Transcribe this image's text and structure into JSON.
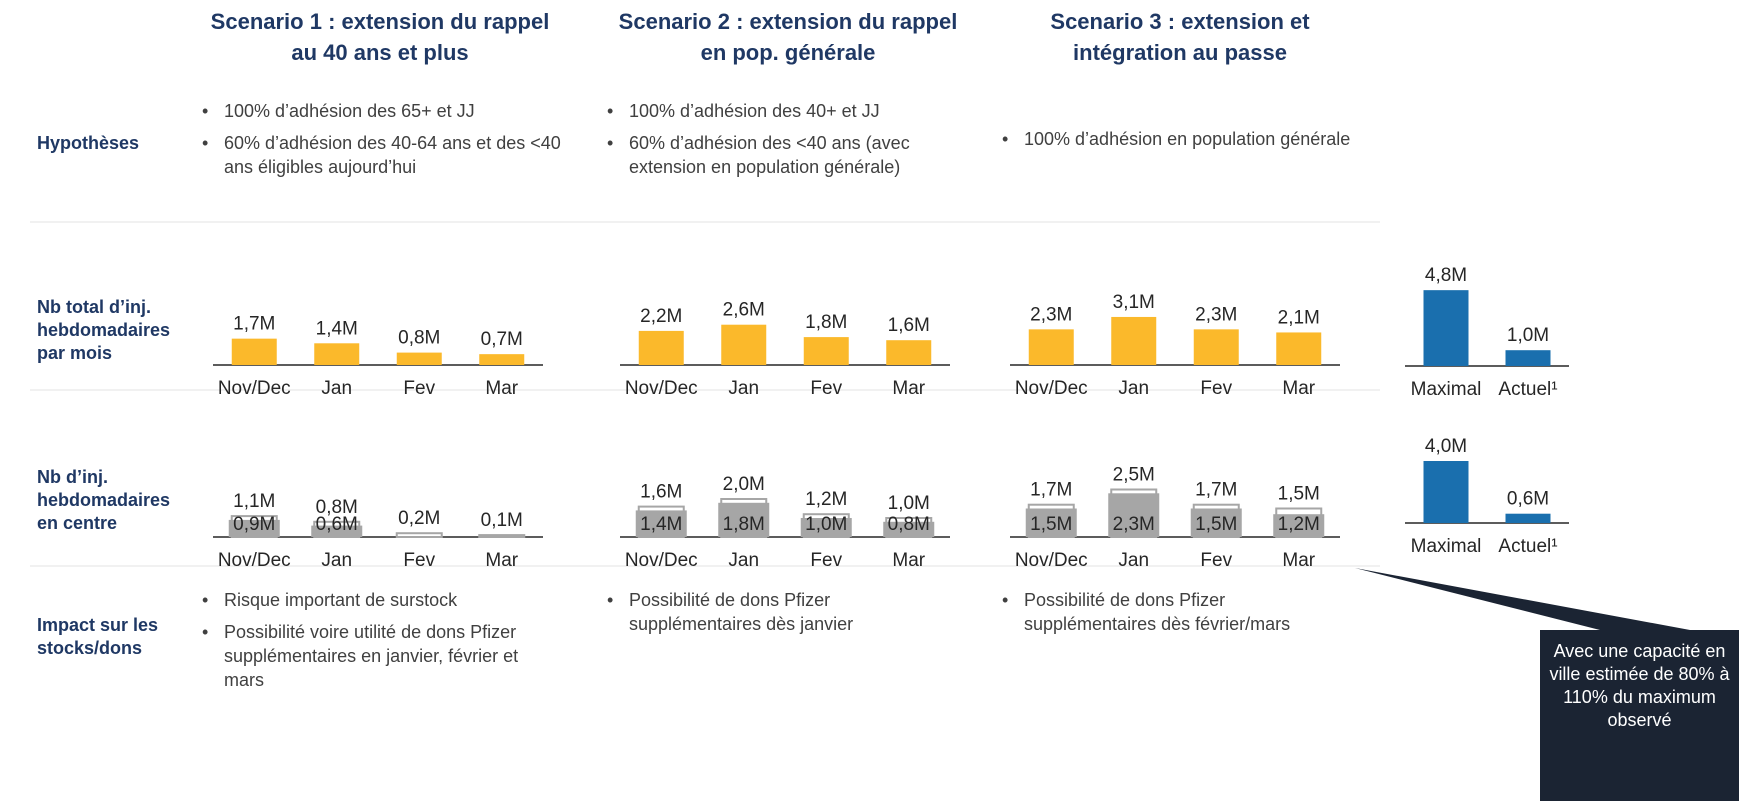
{
  "row_labels": [
    "Hypothèses",
    "Nb total d’inj. hebdomadaires par mois",
    "Nb d’inj. hebdomadaires en centre",
    "Impact sur les stocks/dons"
  ],
  "scenarios": [
    {
      "title": "Scenario 1 : extension du rappel au 40 ans et plus",
      "hypotheses": [
        "100% d’adhésion des 65+ et JJ",
        "60% d’adhésion des 40-64 ans et des <40 ans éligibles aujourd’hui"
      ],
      "impact": [
        "Risque important de surstock",
        "Possibilité voire utilité de dons Pfizer supplémentaires en janvier, février et mars"
      ],
      "total_chart": {
        "type": "bar",
        "categories": [
          "Nov/Dec",
          "Jan",
          "Fev",
          "Mar"
        ],
        "values": [
          1.7,
          1.4,
          0.8,
          0.7
        ],
        "value_labels": [
          "1,7M",
          "1,4M",
          "0,8M",
          "0,7M"
        ],
        "color": "#fbb92b"
      },
      "centre_chart": {
        "type": "bar",
        "categories": [
          "Nov/Dec",
          "Jan",
          "Fev",
          "Mar"
        ],
        "values": [
          1.1,
          0.8,
          0.2,
          0.1
        ],
        "value_labels": [
          "1,1M",
          "0,8M",
          "0,2M",
          "0,1M"
        ],
        "inner_values": [
          0.9,
          0.6,
          null,
          null
        ],
        "inner_value_labels": [
          "0,9M",
          "0,6M",
          null,
          null
        ],
        "color": "#a6a6a6"
      }
    },
    {
      "title": "Scenario 2 : extension du rappel en pop. générale",
      "hypotheses": [
        "100% d’adhésion des 40+ et JJ",
        "60% d’adhésion des <40 ans (avec extension en population générale)"
      ],
      "impact": [
        "Possibilité de dons Pfizer supplémentaires dès janvier"
      ],
      "total_chart": {
        "type": "bar",
        "categories": [
          "Nov/Dec",
          "Jan",
          "Fev",
          "Mar"
        ],
        "values": [
          2.2,
          2.6,
          1.8,
          1.6
        ],
        "value_labels": [
          "2,2M",
          "2,6M",
          "1,8M",
          "1,6M"
        ],
        "color": "#fbb92b"
      },
      "centre_chart": {
        "type": "bar",
        "categories": [
          "Nov/Dec",
          "Jan",
          "Fev",
          "Mar"
        ],
        "values": [
          1.6,
          2.0,
          1.2,
          1.0
        ],
        "value_labels": [
          "1,6M",
          "2,0M",
          "1,2M",
          "1,0M"
        ],
        "inner_values": [
          1.4,
          1.8,
          1.0,
          0.8
        ],
        "inner_value_labels": [
          "1,4M",
          "1,8M",
          "1,0M",
          "0,8M"
        ],
        "color": "#a6a6a6"
      }
    },
    {
      "title": "Scenario 3 : extension et intégration au passe",
      "hypotheses": [
        "100% d’adhésion en population générale"
      ],
      "impact": [
        "Possibilité de dons Pfizer supplémentaires dès février/mars"
      ],
      "total_chart": {
        "type": "bar",
        "categories": [
          "Nov/Dec",
          "Jan",
          "Fev",
          "Mar"
        ],
        "values": [
          2.3,
          3.1,
          2.3,
          2.1
        ],
        "value_labels": [
          "2,3M",
          "3,1M",
          "2,3M",
          "2,1M"
        ],
        "color": "#fbb92b"
      },
      "centre_chart": {
        "type": "bar",
        "categories": [
          "Nov/Dec",
          "Jan",
          "Fev",
          "Mar"
        ],
        "values": [
          1.7,
          2.5,
          1.7,
          1.5
        ],
        "value_labels": [
          "1,7M",
          "2,5M",
          "1,7M",
          "1,5M"
        ],
        "inner_values": [
          1.5,
          2.3,
          1.5,
          1.2
        ],
        "inner_value_labels": [
          "1,5M",
          "2,3M",
          "1,5M",
          "1,2M"
        ],
        "color": "#a6a6a6"
      }
    }
  ],
  "capacity": {
    "total_chart": {
      "type": "bar",
      "categories": [
        "Maximal",
        "Actuel¹"
      ],
      "values": [
        4.8,
        1.0
      ],
      "value_labels": [
        "4,8M",
        "1,0M"
      ],
      "color": "#1a6fae"
    },
    "centre_chart": {
      "type": "bar",
      "categories": [
        "Maximal",
        "Actuel¹"
      ],
      "values": [
        4.0,
        0.6
      ],
      "value_labels": [
        "4,0M",
        "0,6M"
      ],
      "color": "#1a6fae"
    }
  },
  "callout": "Avec une capacité en ville estimée de 80% à 110% du maximum observé"
}
